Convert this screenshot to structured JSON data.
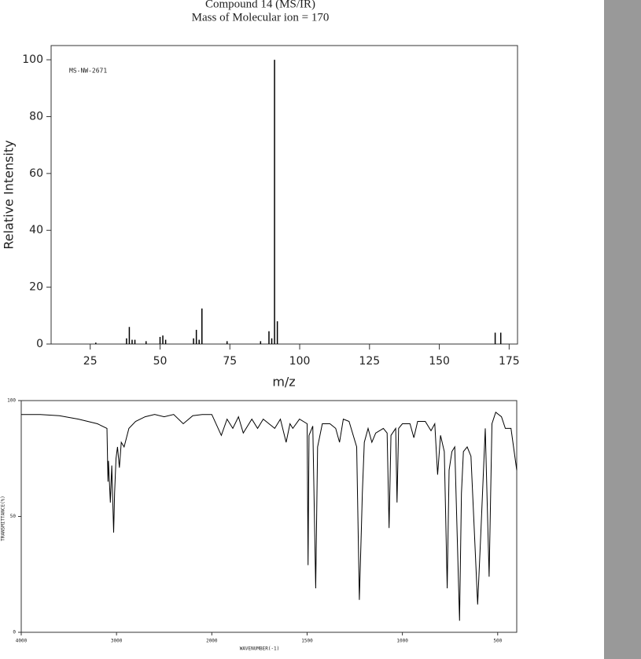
{
  "chart_data": [
    {
      "type": "bar",
      "title": "Compound 14 (MS/IR)",
      "subtitle": "Mass of Molecular ion = 170",
      "annotation": "MS-NW-2671",
      "x": [
        27,
        38,
        39,
        40,
        41,
        45,
        50,
        51,
        52,
        62,
        63,
        64,
        65,
        74,
        86,
        89,
        90,
        91,
        92,
        170,
        172
      ],
      "values": [
        0.5,
        2,
        6,
        1.5,
        1.5,
        1,
        2.5,
        3,
        1.5,
        2,
        5,
        1.5,
        12.5,
        1,
        1,
        4.5,
        2,
        100,
        8,
        4,
        4
      ],
      "color": "#000000",
      "xlim": [
        11,
        178
      ],
      "ylim": [
        0,
        105
      ],
      "xticks": [
        25,
        50,
        75,
        100,
        125,
        150,
        175
      ],
      "yticks": [
        0,
        20,
        40,
        60,
        80,
        100
      ],
      "x_label": "m/z",
      "y_label": "Relative Intensity"
    },
    {
      "type": "line",
      "x": [
        4000,
        3800,
        3600,
        3400,
        3200,
        3100,
        3090,
        3085,
        3065,
        3050,
        3030,
        3020,
        3005,
        2990,
        2970,
        2950,
        2920,
        2870,
        2800,
        2700,
        2600,
        2500,
        2400,
        2300,
        2200,
        2100,
        2000,
        1950,
        1920,
        1890,
        1860,
        1835,
        1790,
        1760,
        1730,
        1700,
        1670,
        1640,
        1610,
        1590,
        1575,
        1540,
        1500,
        1495,
        1490,
        1470,
        1455,
        1445,
        1420,
        1380,
        1350,
        1330,
        1310,
        1280,
        1240,
        1226,
        1215,
        1210,
        1200,
        1180,
        1160,
        1140,
        1100,
        1080,
        1070,
        1060,
        1035,
        1028,
        1020,
        1000,
        960,
        940,
        920,
        880,
        850,
        830,
        815,
        800,
        780,
        765,
        755,
        740,
        725,
        700,
        690,
        680,
        660,
        640,
        605,
        590,
        565,
        545,
        530,
        510,
        480,
        460,
        430,
        400
      ],
      "values": [
        94,
        94,
        93.5,
        92,
        90,
        88,
        65,
        74,
        56,
        72,
        43,
        60,
        75,
        80,
        71,
        82,
        80,
        88,
        91,
        93,
        94,
        93,
        94,
        90,
        93.5,
        94,
        94,
        85,
        92,
        88,
        93,
        86,
        92,
        88,
        92,
        90,
        88,
        92,
        82,
        90,
        88,
        92,
        90,
        29,
        85,
        89,
        19,
        80,
        90,
        90,
        88,
        82,
        92,
        91,
        80,
        14,
        45,
        60,
        82,
        88,
        82,
        86,
        88,
        86,
        45,
        85,
        88,
        56,
        88,
        90,
        90,
        84,
        91,
        91,
        87,
        90,
        68,
        85,
        78,
        19,
        70,
        78,
        80,
        5,
        60,
        78,
        80,
        76,
        12,
        40,
        88,
        24,
        90,
        95,
        93,
        88,
        88,
        70
      ],
      "color": "#000000",
      "xlim": [
        4000,
        400
      ],
      "ylim": [
        0,
        100
      ],
      "xticks": [
        4000,
        3000,
        2000,
        1500,
        1000,
        500
      ],
      "yticks": [
        0,
        50,
        100
      ],
      "x_label": "WAVENUMBER(-1)",
      "y_label": "TRANSMITTANCE(%)"
    }
  ]
}
